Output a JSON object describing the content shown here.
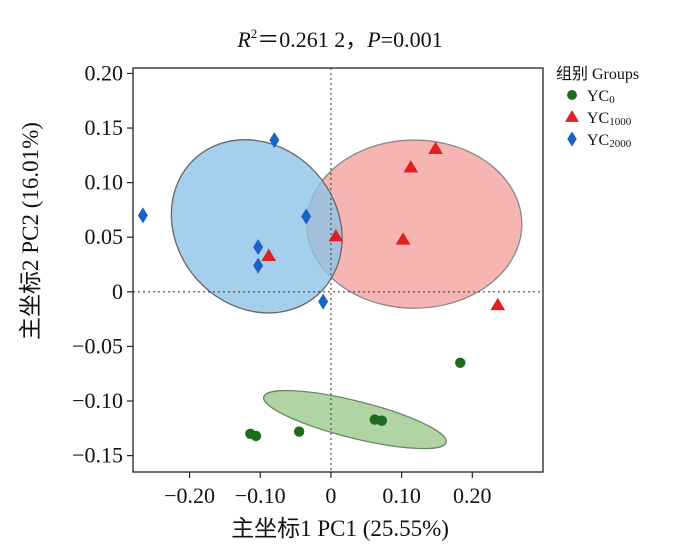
{
  "chart_data": {
    "type": "scatter",
    "title": {
      "r_symbol": "R",
      "r_sup": "2",
      "r_value": "＝0.261 2，",
      "p_symbol": "P",
      "p_value": "=0.001"
    },
    "xlabel": "主坐标1 PC1 (25.55%)",
    "ylabel": "主坐标2 PC2 (16.01%)",
    "xlim": [
      -0.28,
      0.3
    ],
    "ylim": [
      -0.165,
      0.205
    ],
    "x_ticks": [
      -0.2,
      -0.1,
      0,
      0.1,
      0.2
    ],
    "x_tick_labels": [
      "−0.20",
      "−0.10",
      "0",
      "0.10",
      "0.20"
    ],
    "y_ticks": [
      -0.15,
      -0.1,
      -0.05,
      0,
      0.05,
      0.1,
      0.15,
      0.2
    ],
    "y_tick_labels": [
      "−0.15",
      "−0.10",
      "−0.05",
      "0",
      "0.05",
      "0.10",
      "0.15",
      "0.20"
    ],
    "grid": false,
    "zero_lines": true,
    "legend": {
      "title": "组别 Groups",
      "position": "top-right"
    },
    "series": [
      {
        "name": "YC",
        "sub": "0",
        "marker": "circle",
        "color": "#1e6b1e",
        "ellipse_fill": "#a8cf9a",
        "ellipse_stroke": "#6a8a62",
        "ellipse": {
          "cx": 0.034,
          "cy": -0.117,
          "rx": 0.133,
          "ry": 0.017,
          "angle_deg": 14
        },
        "points": [
          {
            "x": -0.114,
            "y": -0.13
          },
          {
            "x": -0.106,
            "y": -0.132
          },
          {
            "x": -0.045,
            "y": -0.128
          },
          {
            "x": 0.062,
            "y": -0.117
          },
          {
            "x": 0.072,
            "y": -0.118
          },
          {
            "x": 0.183,
            "y": -0.065
          }
        ]
      },
      {
        "name": "YC",
        "sub": "1000",
        "marker": "triangle",
        "color": "#e02020",
        "ellipse_fill": "#f4a3a0",
        "ellipse_stroke": "#888888",
        "ellipse": {
          "cx": 0.118,
          "cy": 0.062,
          "rx": 0.152,
          "ry": 0.077,
          "angle_deg": 0
        },
        "points": [
          {
            "x": -0.088,
            "y": 0.033
          },
          {
            "x": 0.007,
            "y": 0.051
          },
          {
            "x": 0.102,
            "y": 0.048
          },
          {
            "x": 0.113,
            "y": 0.114
          },
          {
            "x": 0.148,
            "y": 0.131
          },
          {
            "x": 0.236,
            "y": -0.012
          }
        ]
      },
      {
        "name": "YC",
        "sub": "2000",
        "marker": "diamond",
        "color": "#1a63c4",
        "ellipse_fill": "#8ec3e6",
        "ellipse_stroke": "#666666",
        "ellipse": {
          "cx": -0.105,
          "cy": 0.06,
          "rx": 0.113,
          "ry": 0.084,
          "angle_deg": -42
        },
        "points": [
          {
            "x": -0.266,
            "y": 0.07
          },
          {
            "x": -0.08,
            "y": 0.139
          },
          {
            "x": -0.035,
            "y": 0.069
          },
          {
            "x": -0.103,
            "y": 0.041
          },
          {
            "x": -0.103,
            "y": 0.024
          },
          {
            "x": -0.011,
            "y": -0.009
          }
        ]
      }
    ]
  }
}
